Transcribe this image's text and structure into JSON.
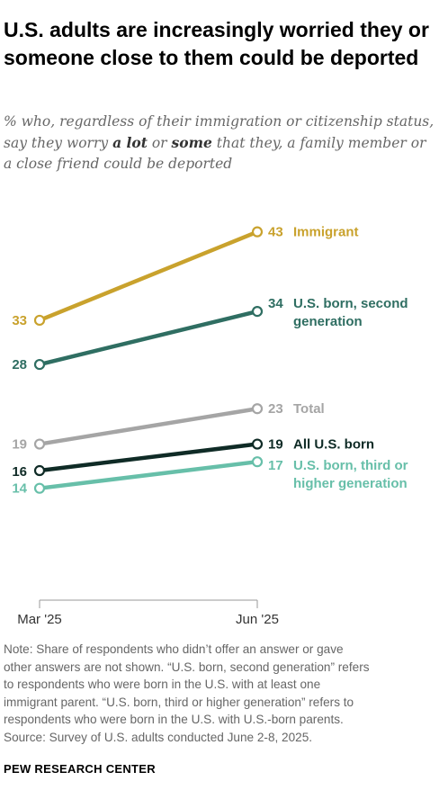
{
  "header": {
    "title": "U.S. adults are increasingly worried they or someone close to them could be deported",
    "subtitle_parts": [
      "% who, regardless of their immigration or citizenship status, say they worry ",
      "a lot",
      " or ",
      "some",
      " that they, a family member or a close friend could be deported"
    ]
  },
  "chart_data": {
    "type": "line",
    "title": "U.S. adults are increasingly worried they or someone close to them could be deported",
    "x": [
      "Mar '25",
      "Jun '25"
    ],
    "ylim": [
      10,
      45
    ],
    "grid": false,
    "legend": "inline labels at line ends",
    "series": [
      {
        "name": "Immigrant",
        "values": [
          33,
          43
        ],
        "color": "#c9a22d",
        "labels": [
          "33",
          "43"
        ],
        "end_label_lines": [
          "Immigrant"
        ]
      },
      {
        "name": "U.S. born, second generation",
        "values": [
          28,
          34
        ],
        "color": "#2f6e62",
        "labels": [
          "28",
          "34"
        ],
        "end_label_lines": [
          "U.S. born, second",
          "generation"
        ]
      },
      {
        "name": "Total",
        "values": [
          19,
          23
        ],
        "color": "#a5a5a5",
        "labels": [
          "19",
          "23"
        ],
        "end_label_lines": [
          "Total"
        ]
      },
      {
        "name": "All U.S. born",
        "values": [
          16,
          19
        ],
        "color": "#0f2b26",
        "labels": [
          "16",
          "19"
        ],
        "end_label_lines": [
          "All U.S. born"
        ]
      },
      {
        "name": "U.S. born, third or higher generation",
        "values": [
          14,
          17
        ],
        "color": "#67bfa9",
        "labels": [
          "14",
          "17"
        ],
        "end_label_lines": [
          "U.S. born, third or",
          "higher generation"
        ]
      }
    ]
  },
  "footer": {
    "note_lines": [
      "Note: Share of respondents who didn’t offer an answer or gave",
      "other answers are not shown. “U.S. born, second generation” refers",
      "to respondents who were born in the U.S. with at least one",
      "immigrant parent. “U.S. born, third or higher generation” refers to",
      "respondents who were born in the U.S. with U.S.-born parents.",
      "Source: Survey of U.S. adults conducted June 2-8, 2025."
    ],
    "brand": "PEW RESEARCH CENTER"
  }
}
